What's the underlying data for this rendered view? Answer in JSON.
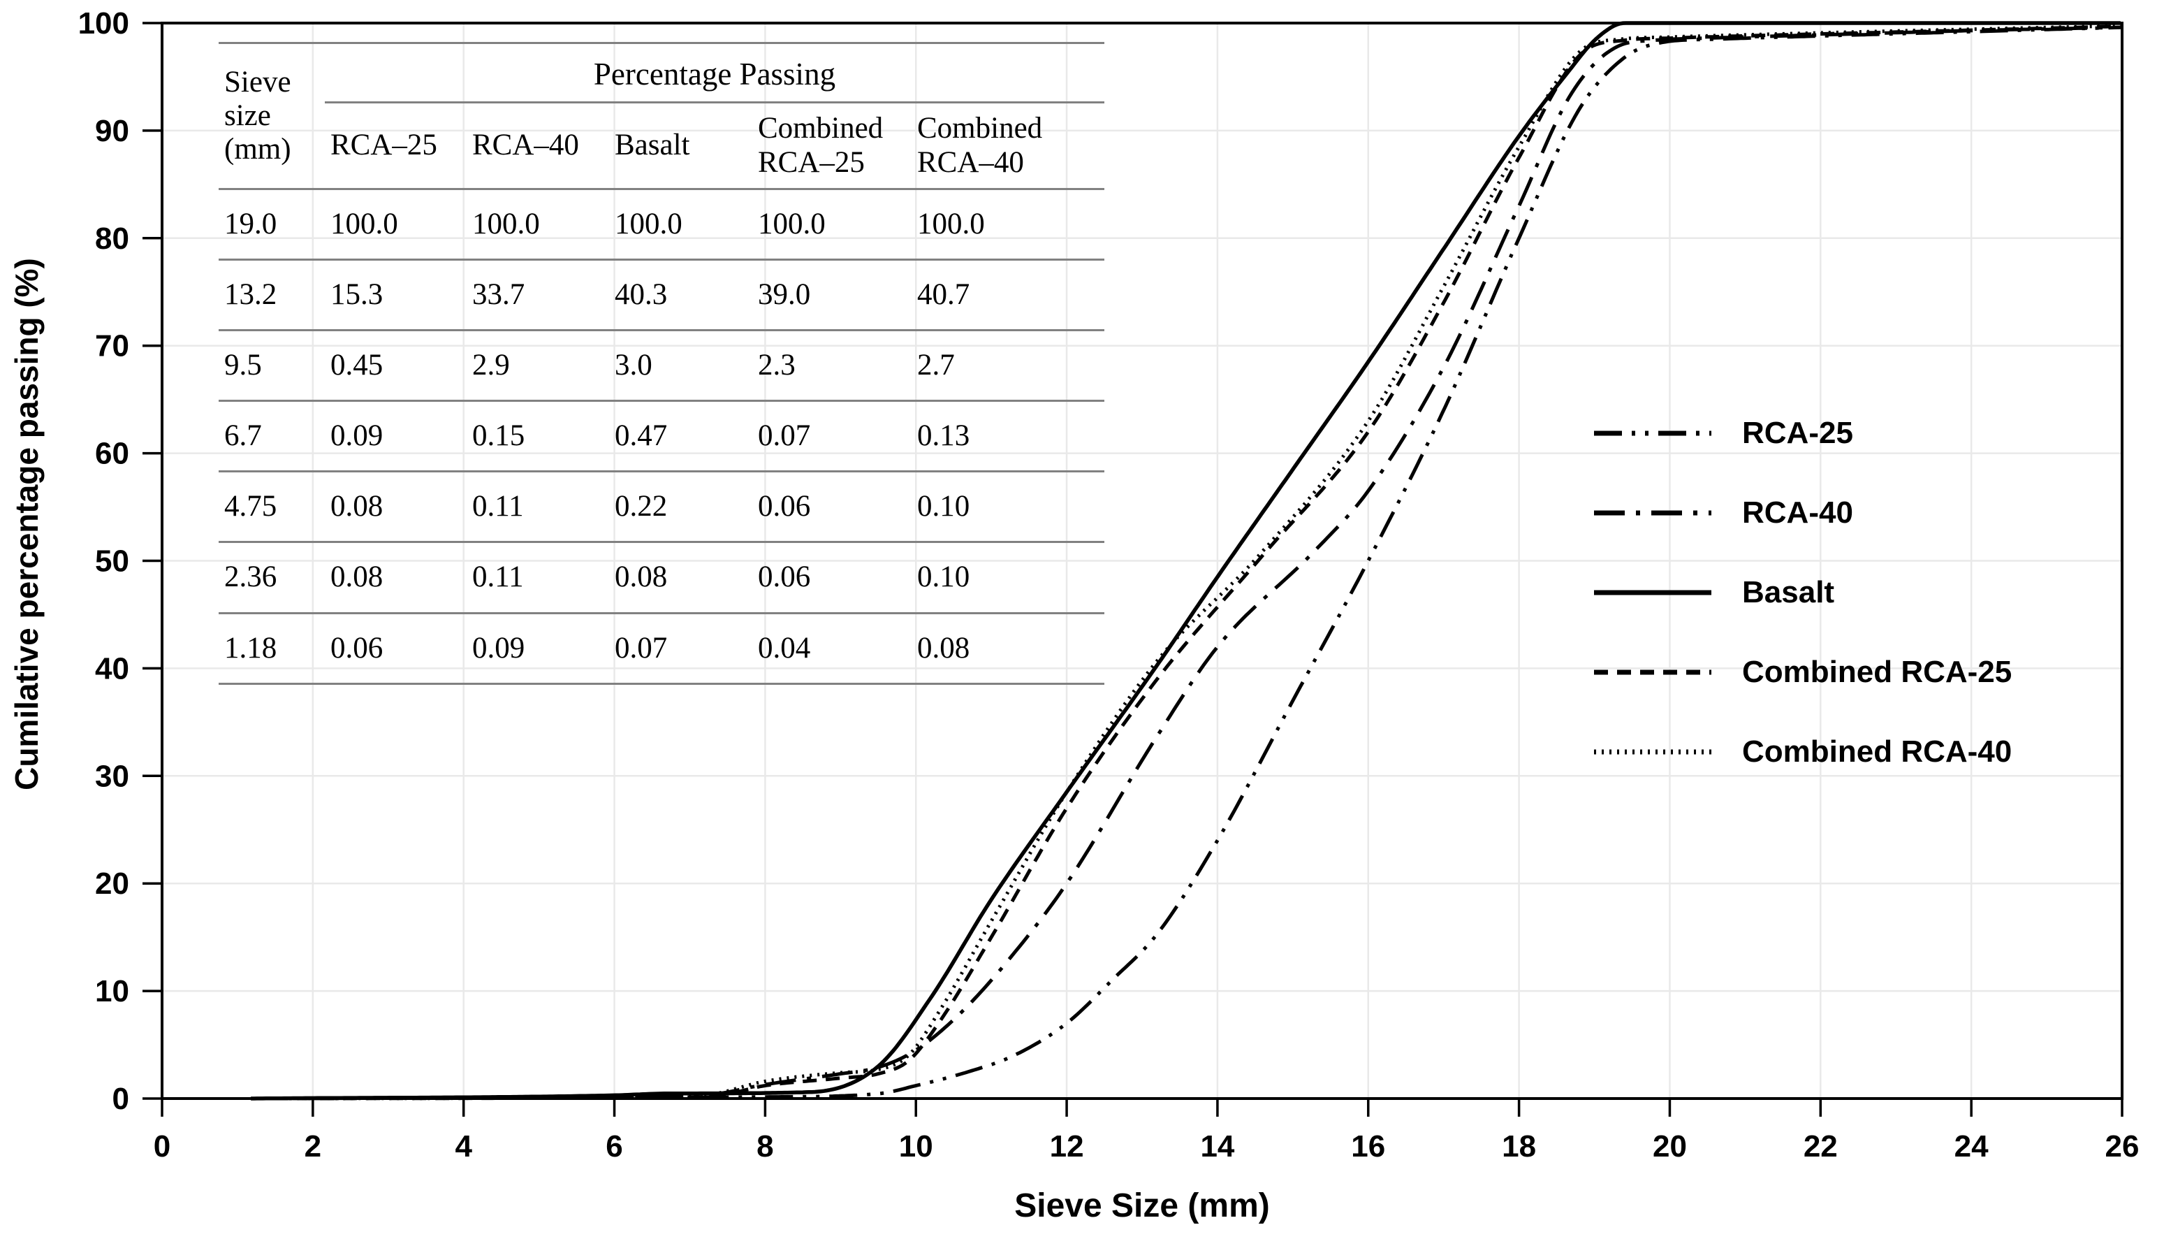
{
  "chart_data": {
    "type": "line",
    "title": "",
    "xlabel": "Sieve Size (mm)",
    "ylabel": "Cumilative percentage passing (%)",
    "xlim": [
      0,
      26
    ],
    "ylim": [
      0,
      100
    ],
    "x_ticks": [
      0,
      2,
      4,
      6,
      8,
      10,
      12,
      14,
      16,
      18,
      20,
      22,
      24,
      26
    ],
    "y_ticks": [
      0,
      10,
      20,
      30,
      40,
      50,
      60,
      70,
      80,
      90,
      100
    ],
    "grid": true,
    "line_color": "#000000",
    "legend_position": "middle-right",
    "sieve_sizes_mm": [
      19.0,
      13.2,
      9.5,
      6.7,
      4.75,
      2.36,
      1.18
    ],
    "series": [
      {
        "name": "RCA-25",
        "line_style": "dash-dot-dot",
        "percent_passing": [
          100.0,
          15.3,
          0.45,
          0.09,
          0.08,
          0.08,
          0.06
        ],
        "curve": [
          [
            1.18,
            0
          ],
          [
            6,
            0.1
          ],
          [
            8,
            0.15
          ],
          [
            9.5,
            0.45
          ],
          [
            10,
            1.2
          ],
          [
            10.7,
            2.5
          ],
          [
            11.3,
            4
          ],
          [
            12,
            7
          ],
          [
            12.6,
            11
          ],
          [
            13.2,
            15.3
          ],
          [
            14,
            24
          ],
          [
            15,
            37
          ],
          [
            16,
            50
          ],
          [
            17,
            64
          ],
          [
            18,
            80
          ],
          [
            18.8,
            92
          ],
          [
            19.4,
            96.8
          ],
          [
            19.9,
            98.2
          ],
          [
            20.6,
            98.5
          ],
          [
            22,
            98.8
          ],
          [
            24,
            99.2
          ],
          [
            26,
            99.6
          ]
        ]
      },
      {
        "name": "RCA-40",
        "line_style": "dash-dot",
        "percent_passing": [
          100.0,
          33.7,
          2.9,
          0.15,
          0.11,
          0.11,
          0.09
        ],
        "curve": [
          [
            1.18,
            0
          ],
          [
            6,
            0.12
          ],
          [
            7.2,
            0.3
          ],
          [
            8,
            1.3
          ],
          [
            9,
            2.3
          ],
          [
            9.5,
            2.9
          ],
          [
            10,
            4.5
          ],
          [
            10.6,
            8
          ],
          [
            11.3,
            13.5
          ],
          [
            12,
            20
          ],
          [
            13.2,
            33.7
          ],
          [
            14,
            42
          ],
          [
            15.3,
            51
          ],
          [
            16,
            56.5
          ],
          [
            17,
            68
          ],
          [
            18,
            83
          ],
          [
            18.7,
            93.5
          ],
          [
            19.3,
            97.8
          ],
          [
            19.8,
            98.4
          ],
          [
            20.5,
            98.6
          ],
          [
            22,
            98.9
          ],
          [
            24,
            99.3
          ],
          [
            26,
            99.6
          ]
        ]
      },
      {
        "name": "Basalt",
        "line_style": "solid",
        "percent_passing": [
          100.0,
          40.3,
          3.0,
          0.47,
          0.22,
          0.08,
          0.07
        ],
        "curve": [
          [
            1.18,
            0
          ],
          [
            6,
            0.3
          ],
          [
            6.7,
            0.47
          ],
          [
            8.6,
            0.6
          ],
          [
            9.5,
            3
          ],
          [
            10.2,
            9.4
          ],
          [
            11,
            18.5
          ],
          [
            12,
            28.5
          ],
          [
            13.2,
            40.3
          ],
          [
            14,
            48.5
          ],
          [
            15,
            58.5
          ],
          [
            16,
            68.5
          ],
          [
            17,
            79
          ],
          [
            18,
            89.5
          ],
          [
            18.6,
            95
          ],
          [
            19.05,
            98.7
          ],
          [
            19.4,
            100
          ],
          [
            26,
            100
          ]
        ]
      },
      {
        "name": "Combined RCA-25",
        "line_style": "dashed",
        "percent_passing": [
          100.0,
          39.0,
          2.3,
          0.07,
          0.06,
          0.06,
          0.04
        ],
        "curve": [
          [
            1.18,
            0
          ],
          [
            6,
            0.05
          ],
          [
            7.3,
            0.2
          ],
          [
            8,
            1.2
          ],
          [
            9,
            1.9
          ],
          [
            9.5,
            2.3
          ],
          [
            9.9,
            3.5
          ],
          [
            10.3,
            7
          ],
          [
            11,
            15
          ],
          [
            12,
            27
          ],
          [
            13.2,
            39
          ],
          [
            14.6,
            50.5
          ],
          [
            16,
            62
          ],
          [
            17,
            74
          ],
          [
            18,
            87.5
          ],
          [
            18.85,
            97.3
          ],
          [
            19.4,
            98.4
          ],
          [
            20,
            98.6
          ],
          [
            21.5,
            98.9
          ],
          [
            23.5,
            99.25
          ],
          [
            26,
            99.7
          ]
        ]
      },
      {
        "name": "Combined RCA-40",
        "line_style": "dotted",
        "percent_passing": [
          100.0,
          40.7,
          2.7,
          0.13,
          0.1,
          0.1,
          0.08
        ],
        "curve": [
          [
            1.18,
            0
          ],
          [
            6,
            0.07
          ],
          [
            7.2,
            0.3
          ],
          [
            8,
            1.6
          ],
          [
            9,
            2.4
          ],
          [
            9.5,
            2.7
          ],
          [
            9.9,
            4
          ],
          [
            10.3,
            8
          ],
          [
            11,
            16.5
          ],
          [
            12,
            28.5
          ],
          [
            13.2,
            40.7
          ],
          [
            14.55,
            50.5
          ],
          [
            16,
            63
          ],
          [
            17,
            75.5
          ],
          [
            18,
            88.5
          ],
          [
            18.85,
            97.6
          ],
          [
            19.35,
            98.5
          ],
          [
            20,
            98.7
          ],
          [
            21.5,
            99.0
          ],
          [
            23.5,
            99.35
          ],
          [
            26,
            99.75
          ]
        ]
      }
    ]
  },
  "inset_table": {
    "col1_header": "Sieve size (mm)",
    "group_header": "Percentage Passing",
    "columns": [
      "RCA–25",
      "RCA–40",
      "Basalt",
      "Combined RCA–25",
      "Combined RCA–40"
    ],
    "rows": [
      {
        "sieve": "19.0",
        "values": [
          "100.0",
          "100.0",
          "100.0",
          "100.0",
          "100.0"
        ]
      },
      {
        "sieve": "13.2",
        "values": [
          "15.3",
          "33.7",
          "40.3",
          "39.0",
          "40.7"
        ]
      },
      {
        "sieve": "9.5",
        "values": [
          "0.45",
          "2.9",
          "3.0",
          "2.3",
          "2.7"
        ]
      },
      {
        "sieve": "6.7",
        "values": [
          "0.09",
          "0.15",
          "0.47",
          "0.07",
          "0.13"
        ]
      },
      {
        "sieve": "4.75",
        "values": [
          "0.08",
          "0.11",
          "0.22",
          "0.06",
          "0.10"
        ]
      },
      {
        "sieve": "2.36",
        "values": [
          "0.08",
          "0.11",
          "0.08",
          "0.06",
          "0.10"
        ]
      },
      {
        "sieve": "1.18",
        "values": [
          "0.06",
          "0.09",
          "0.07",
          "0.04",
          "0.08"
        ]
      }
    ]
  },
  "legend": {
    "items": [
      {
        "label": "RCA-25",
        "style": "dash-dot-dot"
      },
      {
        "label": "RCA-40",
        "style": "dash-dot"
      },
      {
        "label": "Basalt",
        "style": "solid"
      },
      {
        "label": "Combined RCA-25",
        "style": "dashed"
      },
      {
        "label": "Combined RCA-40",
        "style": "dotted"
      }
    ]
  },
  "colors": {
    "line": "#000000",
    "grid": "#e9e9e9",
    "table_rule": "#818181",
    "background": "#ffffff"
  }
}
